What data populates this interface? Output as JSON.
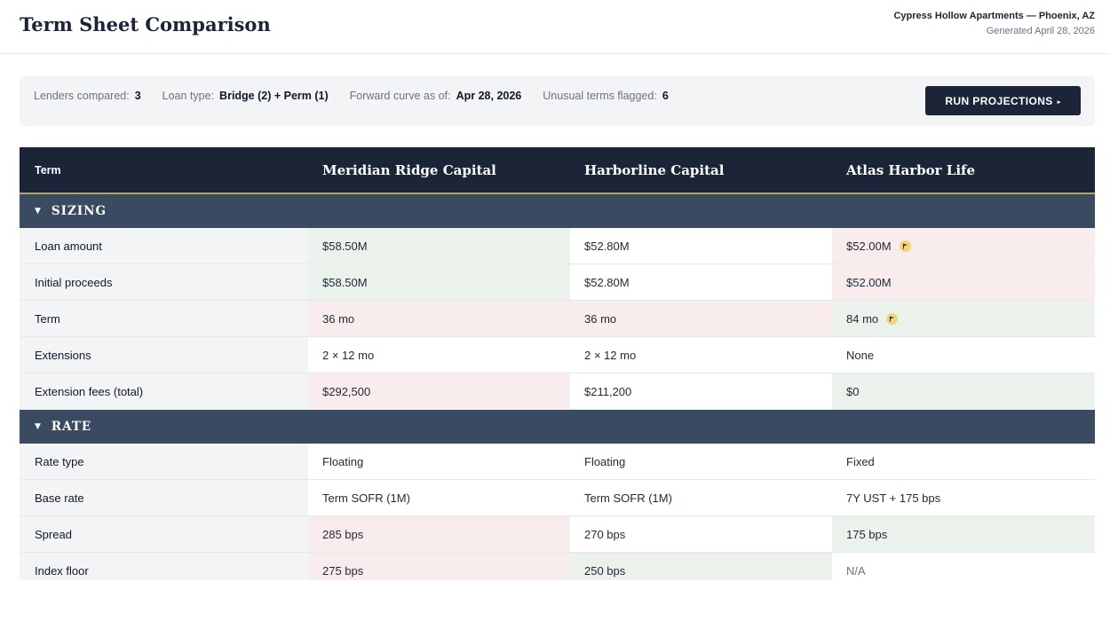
{
  "header": {
    "title": "Term Sheet Comparison",
    "project": "Cypress Hollow Apartments — Phoenix, AZ",
    "generated": "Generated April 28, 2026"
  },
  "summary": {
    "lenders_label": "Lenders compared:",
    "lenders_value": "3",
    "loan_type_label": "Loan type:",
    "loan_type_value": "Bridge (2) + Perm (1)",
    "curve_label": "Forward curve as of:",
    "curve_value": "Apr 28, 2026",
    "flagged_label": "Unusual terms flagged:",
    "flagged_value": "6",
    "run_button": "RUN PROJECTIONS",
    "run_button_arrow": "▸"
  },
  "table": {
    "columns": [
      "Term",
      "Meridian Ridge Capital",
      "Harborline Capital",
      "Atlas Harbor Life"
    ],
    "sections": [
      {
        "caret": "▼",
        "title": "SIZING",
        "rows": [
          {
            "term": "Loan amount",
            "values": [
              "$58.50M",
              "$52.80M",
              "$52.00M"
            ],
            "status": [
              "good",
              "neutral",
              "bad"
            ],
            "flags": [
              false,
              false,
              true
            ]
          },
          {
            "term": "Initial proceeds",
            "values": [
              "$58.50M",
              "$52.80M",
              "$52.00M"
            ],
            "status": [
              "good",
              "neutral",
              "bad"
            ],
            "flags": [
              false,
              false,
              false
            ]
          },
          {
            "term": "Term",
            "values": [
              "36 mo",
              "36 mo",
              "84 mo"
            ],
            "status": [
              "bad",
              "bad",
              "good"
            ],
            "flags": [
              false,
              false,
              true
            ]
          },
          {
            "term": "Extensions",
            "values": [
              "2 × 12 mo",
              "2 × 12 mo",
              "None"
            ],
            "status": [
              "neutral",
              "neutral",
              "neutral"
            ],
            "flags": [
              false,
              false,
              false
            ]
          },
          {
            "term": "Extension fees (total)",
            "values": [
              "$292,500",
              "$211,200",
              "$0"
            ],
            "status": [
              "bad",
              "neutral",
              "good"
            ],
            "flags": [
              false,
              false,
              false
            ]
          }
        ]
      },
      {
        "caret": "▼",
        "title": "RATE",
        "rows": [
          {
            "term": "Rate type",
            "values": [
              "Floating",
              "Floating",
              "Fixed"
            ],
            "status": [
              "neutral",
              "neutral",
              "neutral"
            ],
            "flags": [
              false,
              false,
              false
            ]
          },
          {
            "term": "Base rate",
            "values": [
              "Term SOFR (1M)",
              "Term SOFR (1M)",
              "7Y UST + 175 bps"
            ],
            "status": [
              "neutral",
              "neutral",
              "neutral"
            ],
            "flags": [
              false,
              false,
              false
            ]
          },
          {
            "term": "Spread",
            "values": [
              "285 bps",
              "270 bps",
              "175 bps"
            ],
            "status": [
              "bad",
              "neutral",
              "good"
            ],
            "flags": [
              false,
              false,
              false
            ]
          },
          {
            "term": "Index floor",
            "values": [
              "275 bps",
              "250 bps",
              "N/A"
            ],
            "status": [
              "bad",
              "good",
              "muted"
            ],
            "flags": [
              false,
              false,
              false
            ]
          }
        ]
      }
    ]
  },
  "colors": {
    "navy": "#1b2537",
    "section": "#3a4a60",
    "gold_rule": "#b8a46a",
    "good": "#ebf2ec",
    "bad": "#f8ecec",
    "flag": "#f2d57a"
  },
  "icons": {
    "flag": "flag-icon",
    "caret": "caret-down-icon"
  }
}
